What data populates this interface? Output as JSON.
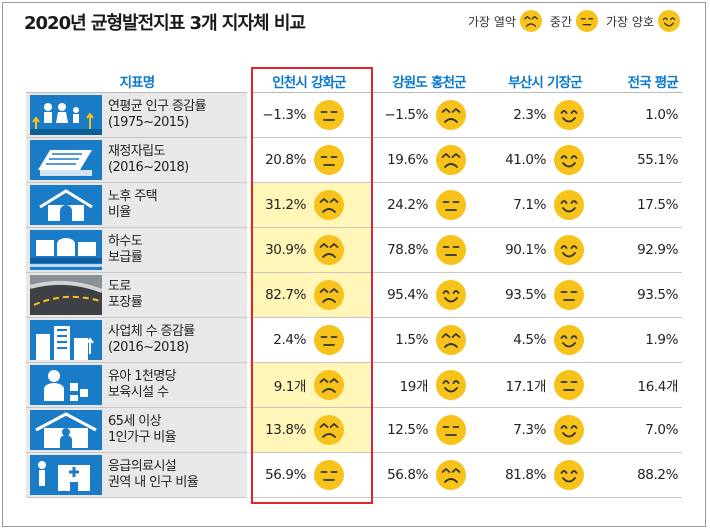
{
  "title": "2020년 균형발전지표 3개 지자체 비교",
  "legend": [
    {
      "label": "가장 열악",
      "face": "worst"
    },
    {
      "label": "중간",
      "face": "middle"
    },
    {
      "label": "가장 양호",
      "face": "best"
    }
  ],
  "columns": [
    "지표명",
    "인천시 강화군",
    "강원도 홍천군",
    "부산시 기장군",
    "전국 평균"
  ],
  "colors": {
    "face": "#f7c21a",
    "header": "#0a7ad1",
    "highlight": "#fff6b8",
    "frame": "#e0252f",
    "icon": "#1a7bc6"
  },
  "rows": [
    {
      "icon": "population-icon",
      "label": [
        "연평균 인구 증감률",
        "(1975~2015)"
      ],
      "ganghwa": "−1.3%",
      "ganghwa_face": "middle",
      "ganghwa_hl": false,
      "hongcheon": "−1.5%",
      "hongcheon_face": "worst",
      "gijang": "2.3%",
      "gijang_face": "best",
      "national": "1.0%"
    },
    {
      "icon": "finance-icon",
      "label": [
        "재정자립도",
        "(2016~2018)"
      ],
      "ganghwa": "20.8%",
      "ganghwa_face": "middle",
      "ganghwa_hl": false,
      "hongcheon": "19.6%",
      "hongcheon_face": "worst",
      "gijang": "41.0%",
      "gijang_face": "best",
      "national": "55.1%"
    },
    {
      "icon": "old-house-icon",
      "label": [
        "노후 주택",
        "비율"
      ],
      "ganghwa": "31.2%",
      "ganghwa_face": "worst",
      "ganghwa_hl": true,
      "hongcheon": "24.2%",
      "hongcheon_face": "middle",
      "gijang": "7.1%",
      "gijang_face": "best",
      "national": "17.5%"
    },
    {
      "icon": "sewer-icon",
      "label": [
        "하수도",
        "보급률"
      ],
      "ganghwa": "30.9%",
      "ganghwa_face": "worst",
      "ganghwa_hl": true,
      "hongcheon": "78.8%",
      "hongcheon_face": "middle",
      "gijang": "90.1%",
      "gijang_face": "best",
      "national": "92.9%"
    },
    {
      "icon": "road-icon",
      "label": [
        "도로",
        "포장률"
      ],
      "ganghwa": "82.7%",
      "ganghwa_face": "worst",
      "ganghwa_hl": true,
      "hongcheon": "95.4%",
      "hongcheon_face": "best",
      "gijang": "93.5%",
      "gijang_face": "middle",
      "national": "93.5%"
    },
    {
      "icon": "business-icon",
      "label": [
        "사업체 수 증감률",
        "(2016~2018)"
      ],
      "ganghwa": "2.4%",
      "ganghwa_face": "middle",
      "ganghwa_hl": false,
      "hongcheon": "1.5%",
      "hongcheon_face": "worst",
      "gijang": "4.5%",
      "gijang_face": "best",
      "national": "1.9%"
    },
    {
      "icon": "childcare-icon",
      "label": [
        "유아 1천명당",
        "보육시설 수"
      ],
      "ganghwa": "9.1개",
      "ganghwa_face": "worst",
      "ganghwa_hl": true,
      "hongcheon": "19개",
      "hongcheon_face": "best",
      "gijang": "17.1개",
      "gijang_face": "middle",
      "national": "16.4개"
    },
    {
      "icon": "single-household-icon",
      "label": [
        "65세 이상",
        "1인가구 비율"
      ],
      "ganghwa": "13.8%",
      "ganghwa_face": "worst",
      "ganghwa_hl": true,
      "hongcheon": "12.5%",
      "hongcheon_face": "middle",
      "gijang": "7.3%",
      "gijang_face": "best",
      "national": "7.0%"
    },
    {
      "icon": "emergency-icon",
      "label": [
        "응급의료시설",
        "권역 내 인구 비율"
      ],
      "ganghwa": "56.9%",
      "ganghwa_face": "middle",
      "ganghwa_hl": false,
      "hongcheon": "56.8%",
      "hongcheon_face": "worst",
      "gijang": "81.8%",
      "gijang_face": "best",
      "national": "88.2%"
    }
  ]
}
